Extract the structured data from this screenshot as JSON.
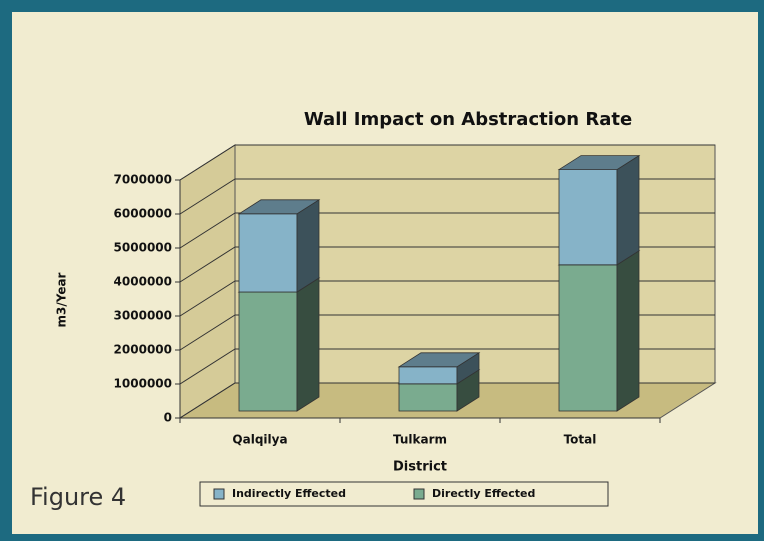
{
  "caption": "Figure 4",
  "chart_data": {
    "type": "bar3d_stacked",
    "title": "Wall Impact on Abstraction Rate",
    "x_label": "District",
    "y_label": "m3/Year",
    "categories": [
      "Qalqilya",
      "Tulkarm",
      "Total"
    ],
    "series": [
      {
        "name": "Indirectly Effected",
        "color": "#86b3c8",
        "values": [
          2300000,
          500000,
          2800000
        ]
      },
      {
        "name": "Directly Effected",
        "color": "#7aab8f",
        "values": [
          3500000,
          800000,
          4300000
        ]
      }
    ],
    "ylim": [
      0,
      7000000
    ],
    "yticks": [
      0,
      1000000,
      2000000,
      3000000,
      4000000,
      5000000,
      6000000,
      7000000
    ],
    "grid": true,
    "legend": "bottom"
  }
}
